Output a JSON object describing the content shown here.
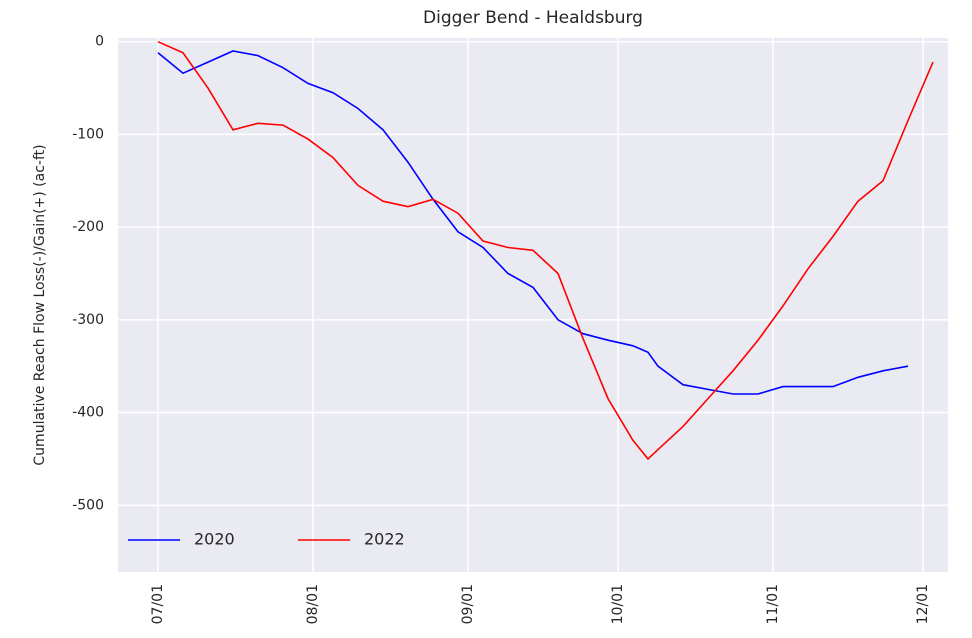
{
  "chart_data": {
    "type": "line",
    "title": "Digger Bend - Healdsburg",
    "y_label": "Cumulative Reach Flow Loss(-)/Gain(+) (ac-ft)",
    "x": [
      "07/01",
      "07/06",
      "07/11",
      "07/16",
      "07/21",
      "07/26",
      "07/31",
      "08/05",
      "08/10",
      "08/15",
      "08/20",
      "08/25",
      "08/30",
      "09/04",
      "09/09",
      "09/14",
      "09/19",
      "09/24",
      "09/29",
      "10/04",
      "10/07",
      "10/09",
      "10/14",
      "10/19",
      "10/24",
      "10/29",
      "11/03",
      "11/08",
      "11/13",
      "11/18",
      "11/23",
      "11/28",
      "12/03"
    ],
    "series": [
      {
        "name": "2020",
        "color": "#0000ff",
        "values": [
          -12,
          -34,
          -22,
          -10,
          -15,
          -28,
          -45,
          -55,
          -72,
          -95,
          -130,
          -170,
          -205,
          -222,
          -250,
          -265,
          -300,
          -315,
          -322,
          -328,
          -335,
          -350,
          -370,
          -375,
          -380,
          -380,
          -372,
          -372,
          -372,
          -362,
          -355,
          -350,
          null
        ]
      },
      {
        "name": "2022",
        "color": "#ff0000",
        "values": [
          0,
          -12,
          -50,
          -95,
          -88,
          -90,
          -105,
          -125,
          -155,
          -172,
          -178,
          -170,
          -185,
          -215,
          -222,
          -225,
          -250,
          -320,
          -385,
          -430,
          -450,
          -440,
          -415,
          -385,
          -355,
          -322,
          -285,
          -245,
          -210,
          -172,
          -150,
          -85,
          -22
        ]
      }
    ],
    "xlim": [
      "06/23",
      "12/06"
    ],
    "xticks": [
      "07/01",
      "08/01",
      "09/01",
      "10/01",
      "11/01",
      "12/01"
    ],
    "ylim": [
      -572,
      4
    ],
    "yticks": [
      -500,
      -400,
      -300,
      -200,
      -100,
      0
    ],
    "grid": true,
    "legend": "lower left"
  }
}
